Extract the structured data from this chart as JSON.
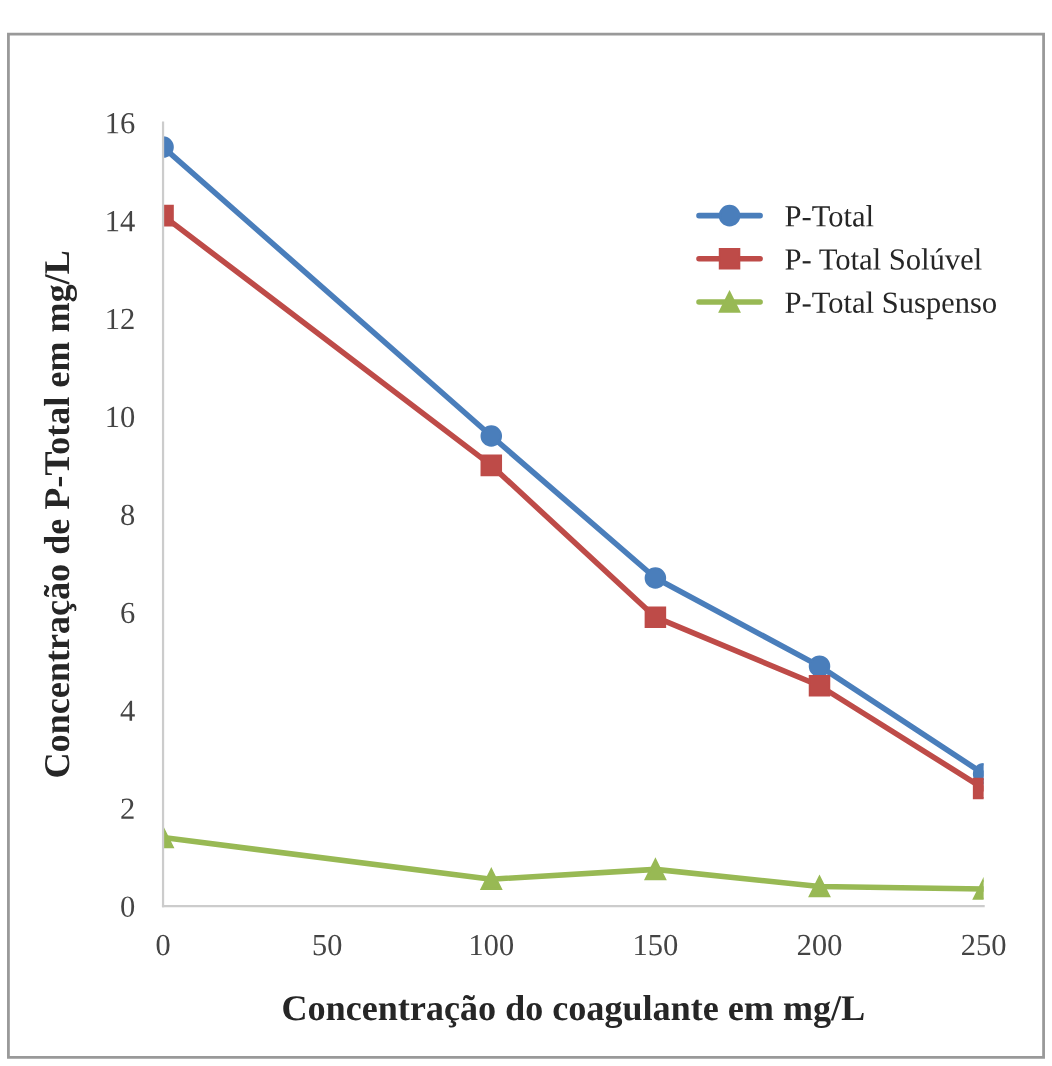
{
  "chart_data": {
    "type": "line",
    "xlabel": "Concentração do coagulante em mg/L",
    "ylabel": "Concentração de P-Total em mg/L",
    "x": [
      0,
      100,
      150,
      200,
      250
    ],
    "series": [
      {
        "name": "P-Total",
        "color": "#4a7ebb",
        "marker": "circle",
        "values": [
          15.5,
          9.6,
          6.7,
          4.9,
          2.7
        ]
      },
      {
        "name": "P- Total Solúvel",
        "color": "#be4b48",
        "marker": "square",
        "values": [
          14.1,
          9.0,
          5.9,
          4.5,
          2.4
        ]
      },
      {
        "name": "P-Total Suspenso",
        "color": "#98b954",
        "marker": "triangle",
        "values": [
          1.4,
          0.55,
          0.75,
          0.4,
          0.35
        ]
      }
    ],
    "xlim": [
      0,
      250
    ],
    "xticks": [
      0,
      50,
      100,
      150,
      200,
      250
    ],
    "ylim": [
      0,
      16
    ],
    "yticks": [
      0,
      2,
      4,
      6,
      8,
      10,
      12,
      14,
      16
    ],
    "grid": false,
    "legend": "top right",
    "line_style": "solid"
  }
}
